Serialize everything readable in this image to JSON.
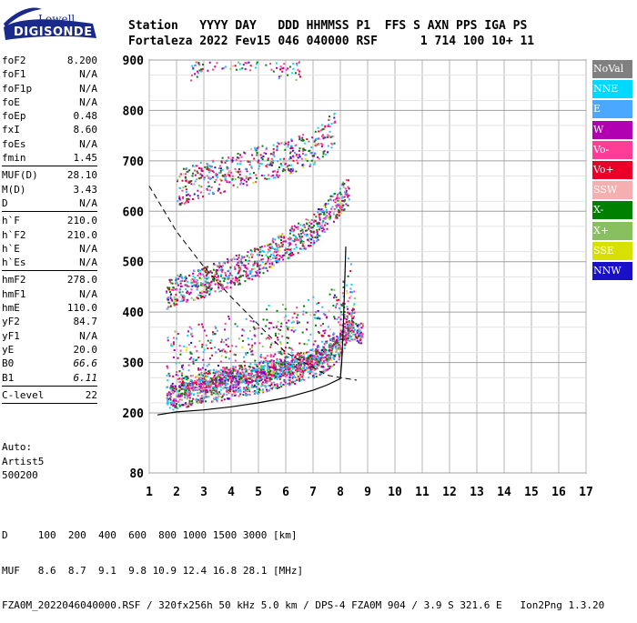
{
  "logo": {
    "top": "Lowell",
    "bottom": "DIGISONDE"
  },
  "header": {
    "line1": "Station   YYYY DAY   DDD HHMMSS P1  FFS S AXN PPS IGA PS",
    "line2": "Fortaleza 2022 Fev15 046 040000 RSF      1 714 100 10+ 11"
  },
  "params": {
    "group1": [
      {
        "k": "foF2",
        "v": "8.200"
      },
      {
        "k": "foF1",
        "v": "N/A"
      },
      {
        "k": "foF1p",
        "v": "N/A"
      },
      {
        "k": "foE",
        "v": "N/A"
      },
      {
        "k": "foEp",
        "v": "0.48"
      },
      {
        "k": "fxI",
        "v": "8.60"
      },
      {
        "k": "foEs",
        "v": "N/A"
      },
      {
        "k": "fmin",
        "v": "1.45"
      }
    ],
    "group2": [
      {
        "k": "MUF(D)",
        "v": "28.10"
      },
      {
        "k": "M(D)",
        "v": "3.43"
      },
      {
        "k": "D",
        "v": "N/A"
      }
    ],
    "group3": [
      {
        "k": "h`F",
        "v": "210.0"
      },
      {
        "k": "h`F2",
        "v": "210.0"
      },
      {
        "k": "h`E",
        "v": "N/A"
      },
      {
        "k": "h`Es",
        "v": "N/A"
      }
    ],
    "group4": [
      {
        "k": "hmF2",
        "v": "278.0"
      },
      {
        "k": "hmF1",
        "v": "N/A"
      },
      {
        "k": "hmE",
        "v": "110.0"
      },
      {
        "k": "yF2",
        "v": "84.7"
      },
      {
        "k": "yF1",
        "v": "N/A"
      },
      {
        "k": "yE",
        "v": "20.0"
      },
      {
        "k": "B0",
        "v": "66.6"
      },
      {
        "k": "B1",
        "v": "6.11"
      }
    ],
    "group5": [
      {
        "k": "C-level",
        "v": "22"
      }
    ]
  },
  "auto": {
    "line1": "Auto:",
    "line2": "Artist5",
    "line3": "500200"
  },
  "legend": [
    {
      "label": "NoVal",
      "color": "#808080"
    },
    {
      "label": "NNE",
      "color": "#00d8ff"
    },
    {
      "label": "E",
      "color": "#4aa8ff"
    },
    {
      "label": "W",
      "color": "#b000b0"
    },
    {
      "label": "Vo-",
      "color": "#ff3c96"
    },
    {
      "label": "Vo+",
      "color": "#e8002a"
    },
    {
      "label": "SSW",
      "color": "#f4b0b0"
    },
    {
      "label": "X-",
      "color": "#008000"
    },
    {
      "label": "X+",
      "color": "#88c060"
    },
    {
      "label": "SSE",
      "color": "#d8e000"
    },
    {
      "label": "NNW",
      "color": "#1a10c8"
    }
  ],
  "footer": {
    "line1": "D     100  200  400  600  800 1000 1500 3000 [km]",
    "line2": "MUF   8.6  8.7  9.1  9.8 10.9 12.4 16.8 28.1 [MHz]",
    "line3": "FZA0M_2022046040000.RSF / 320fx256h 50 kHz 5.0 km / DPS-4 FZA0M 904 / 3.9 S 321.6 E   Ion2Png 1.3.20"
  },
  "chart_data": {
    "type": "scatter",
    "xlim": [
      1,
      17
    ],
    "ylim": [
      80,
      900
    ],
    "x_ticks": [
      1,
      2,
      3,
      4,
      5,
      6,
      7,
      8,
      9,
      10,
      11,
      12,
      13,
      14,
      15,
      16,
      17
    ],
    "y_ticks": [
      80,
      200,
      300,
      400,
      500,
      600,
      700,
      800,
      900
    ],
    "grid": true,
    "legend_position": "right",
    "traces": [
      {
        "name": "F2 O-trace 1st hop",
        "x": [
          1.6,
          2,
          3,
          4,
          5,
          6,
          7,
          7.5,
          8,
          8.2,
          8.5
        ],
        "y": [
          225,
          230,
          240,
          250,
          260,
          275,
          290,
          305,
          330,
          360,
          390
        ]
      },
      {
        "name": "F2 X-trace 1st hop",
        "x": [
          2,
          3,
          4,
          5,
          6,
          7,
          7.8,
          8.3,
          8.8
        ],
        "y": [
          245,
          260,
          270,
          280,
          290,
          305,
          330,
          360,
          355
        ]
      },
      {
        "name": "F2 2nd hop",
        "x": [
          1.6,
          2,
          3,
          4,
          5,
          6,
          7,
          7.5,
          8.3
        ],
        "y": [
          430,
          440,
          455,
          475,
          495,
          530,
          560,
          590,
          640
        ]
      },
      {
        "name": "F2 3rd hop",
        "x": [
          2,
          3,
          4,
          5,
          6,
          7,
          7.8
        ],
        "y": [
          640,
          660,
          670,
          690,
          700,
          720,
          760
        ]
      },
      {
        "name": "F2 4th hop",
        "x": [
          2.5,
          3,
          4,
          5,
          6,
          6.5
        ],
        "y": [
          880,
          895,
          900,
          900,
          880,
          880
        ]
      }
    ],
    "profile": {
      "x": [
        1.3,
        2,
        3,
        4,
        5,
        6,
        7,
        7.5,
        8,
        8.05,
        8.1,
        8.15,
        8.2
      ],
      "y": [
        196,
        202,
        206,
        212,
        220,
        230,
        245,
        255,
        268,
        300,
        360,
        440,
        530
      ]
    },
    "muf_curve": {
      "x": [
        1,
        2,
        3,
        4,
        5,
        6,
        7,
        7.5,
        8,
        8.6
      ],
      "y": [
        650,
        560,
        490,
        430,
        375,
        320,
        290,
        275,
        270,
        265
      ]
    }
  }
}
